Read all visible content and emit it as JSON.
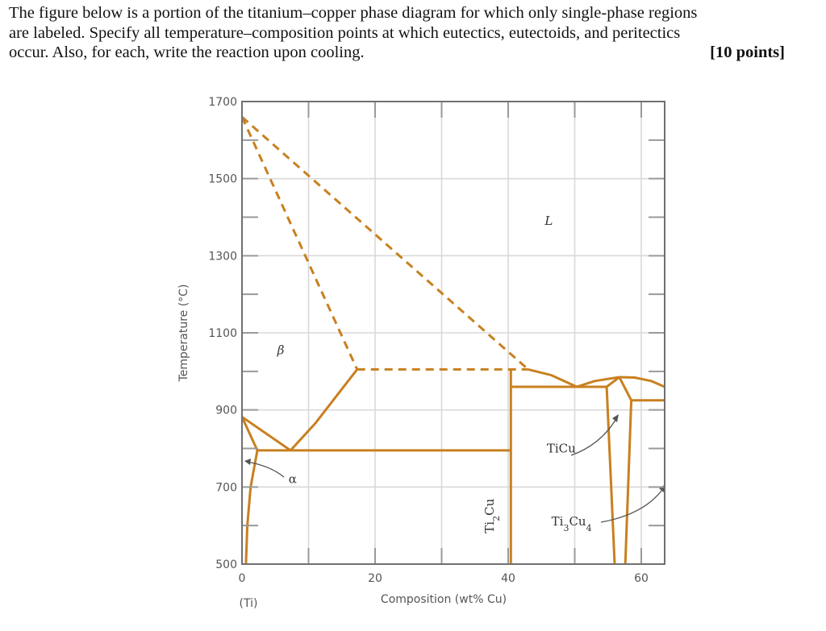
{
  "question": {
    "lines": [
      "The figure below is a portion of the titanium–copper phase diagram for which only single-phase regions",
      "are labeled. Specify all temperature–composition points at which eutectics, eutectoids, and peritectics",
      "occur. Also, for each, write the reaction upon cooling."
    ],
    "points_label": "[10 points]"
  },
  "colors": {
    "phase_line": "#C8801F",
    "grid": "#d9d9d9",
    "axis": "#707070",
    "tick": "#9a9a9a",
    "leader": "#555555"
  },
  "chart_data": {
    "type": "line",
    "title": "Titanium–copper phase diagram (portion)",
    "xlabel": "Composition (wt% Cu)",
    "ylabel": "Temperature (°C)",
    "xlim": [
      0,
      63.5
    ],
    "ylim": [
      500,
      1700
    ],
    "x_ticks": [
      0,
      20,
      40,
      60
    ],
    "x_minor_ticks": [
      10,
      30,
      50
    ],
    "x_sublabel": "(Ti)",
    "y_ticks": [
      500,
      700,
      900,
      1100,
      1300,
      1500,
      1700
    ],
    "y_minor_ticks": [
      600,
      800,
      1000,
      1200,
      1400,
      1600
    ],
    "grid": true,
    "phase_labels": [
      {
        "text": "L",
        "x": 45.5,
        "y": 1380,
        "italic": true
      },
      {
        "text": "β",
        "x": 5.3,
        "y": 1045,
        "italic": true
      },
      {
        "text": "α",
        "x": 7.0,
        "y": 710,
        "italic": false
      },
      {
        "text": "TiCu",
        "x": 45.8,
        "y": 790,
        "italic": false
      },
      {
        "text": "Ti2Cu",
        "x": 37.8,
        "y": 625,
        "italic": false,
        "rotated": true
      },
      {
        "text": "Ti3Cu4",
        "x": 46.5,
        "y": 600,
        "italic": false
      }
    ],
    "lines": [
      {
        "name": "liquidus-left",
        "style": "dashed",
        "points": [
          [
            0,
            1660
          ],
          [
            43,
            1005
          ]
        ]
      },
      {
        "name": "solidus-beta",
        "style": "dashed",
        "points": [
          [
            0,
            1660
          ],
          [
            17.3,
            1005
          ]
        ]
      },
      {
        "name": "eutectic-isotherm-1005",
        "style": "dashed",
        "points": [
          [
            17.3,
            1005
          ],
          [
            43,
            1005
          ]
        ]
      },
      {
        "name": "beta-solvus",
        "style": "solid",
        "points": [
          [
            7.3,
            795
          ],
          [
            11,
            865
          ],
          [
            17.3,
            1005
          ]
        ]
      },
      {
        "name": "alpha-beta-transus",
        "style": "solid",
        "points": [
          [
            0,
            882
          ],
          [
            7.3,
            795
          ]
        ]
      },
      {
        "name": "alpha-beta-lower",
        "style": "solid",
        "points": [
          [
            0,
            882
          ],
          [
            2.3,
            795
          ]
        ]
      },
      {
        "name": "alpha-solvus",
        "style": "solid",
        "points": [
          [
            2.3,
            795
          ],
          [
            1.3,
            700
          ],
          [
            0.8,
            600
          ],
          [
            0.6,
            500
          ]
        ]
      },
      {
        "name": "eutectoid-isotherm-795",
        "style": "solid",
        "points": [
          [
            2.3,
            795
          ],
          [
            40.4,
            795
          ]
        ]
      },
      {
        "name": "Ti2Cu-line",
        "style": "solid",
        "points": [
          [
            40.4,
            500
          ],
          [
            40.4,
            1005
          ]
        ]
      },
      {
        "name": "liquidus-Ti2Cu",
        "style": "solid",
        "points": [
          [
            43,
            1005
          ],
          [
            46.5,
            990
          ],
          [
            50.3,
            960
          ]
        ]
      },
      {
        "name": "eutectic-isotherm-960",
        "style": "solid",
        "points": [
          [
            40.4,
            960
          ],
          [
            54.8,
            960
          ]
        ]
      },
      {
        "name": "liquidus-TiCu",
        "style": "solid",
        "points": [
          [
            50.3,
            960
          ],
          [
            53,
            975
          ],
          [
            56.7,
            985
          ]
        ]
      },
      {
        "name": "liquidus-right",
        "style": "solid",
        "points": [
          [
            56.7,
            985
          ],
          [
            59,
            984
          ],
          [
            61.5,
            975
          ],
          [
            63.5,
            960
          ]
        ]
      },
      {
        "name": "TiCu-upper-left",
        "style": "solid",
        "points": [
          [
            54.8,
            960
          ],
          [
            56.7,
            985
          ]
        ]
      },
      {
        "name": "TiCu-upper-right",
        "style": "solid",
        "points": [
          [
            56.7,
            985
          ],
          [
            58.5,
            925
          ]
        ]
      },
      {
        "name": "peritectic-isotherm-925",
        "style": "solid",
        "points": [
          [
            58.5,
            925
          ],
          [
            63.5,
            925
          ]
        ]
      },
      {
        "name": "TiCu-left-boundary",
        "style": "solid",
        "points": [
          [
            54.8,
            960
          ],
          [
            56.0,
            500
          ]
        ]
      },
      {
        "name": "TiCu-right-boundary",
        "style": "solid",
        "points": [
          [
            58.5,
            925
          ],
          [
            57.6,
            500
          ]
        ]
      }
    ],
    "invariant_points_estimated": [
      {
        "type": "eutectic",
        "x": 43,
        "T": 1005
      },
      {
        "type": "eutectic",
        "x": 50.3,
        "T": 960
      },
      {
        "type": "peritectic",
        "x": 56.7,
        "T": 985
      },
      {
        "type": "eutectoid",
        "x": 7.3,
        "T": 795
      },
      {
        "type": "peritectic",
        "x": 63.5,
        "T": 925
      }
    ]
  }
}
